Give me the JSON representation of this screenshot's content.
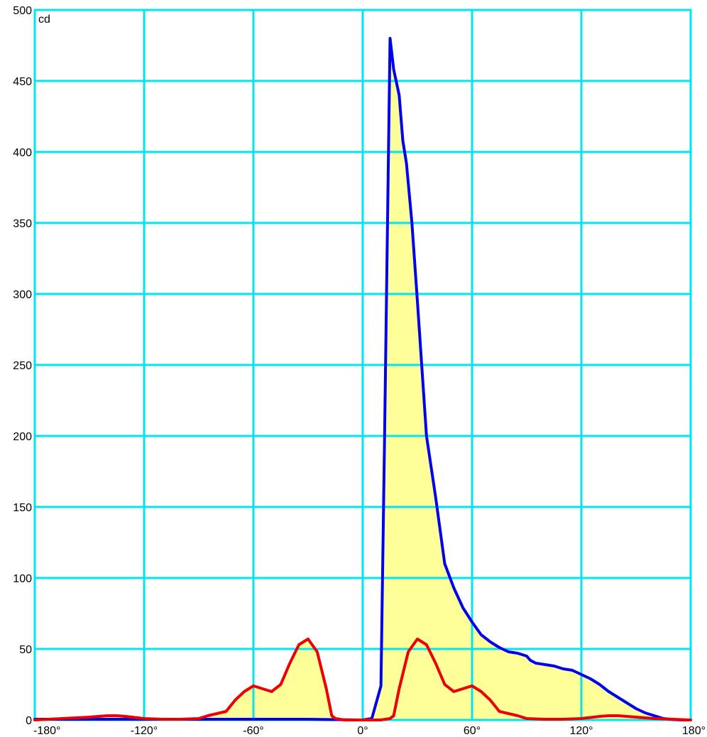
{
  "colors": {
    "background": "#ffffff",
    "grid": "#00e5ee",
    "fill": "#ffff99",
    "series_blue": "#0000ee",
    "series_red": "#ee0000"
  },
  "chart_data": {
    "type": "line",
    "unit_label": "cd",
    "xlim": [
      -180,
      180
    ],
    "ylim": [
      0,
      500
    ],
    "x_ticks": [
      -180,
      -120,
      -60,
      0,
      60,
      120,
      180
    ],
    "x_tick_labels": [
      "-180°",
      "-120°",
      "-60°",
      "0°",
      "60°",
      "120°",
      "180°"
    ],
    "y_ticks": [
      0,
      50,
      100,
      150,
      200,
      250,
      300,
      350,
      400,
      450,
      500
    ],
    "y_tick_labels": [
      "0",
      "50",
      "100",
      "150",
      "200",
      "250",
      "300",
      "350",
      "400",
      "450",
      "500"
    ],
    "grid": true,
    "fill_under_curves": true,
    "series": [
      {
        "color": "#0000ee",
        "x": [
          -180,
          -150,
          -120,
          -90,
          -60,
          -30,
          0,
          5,
          10,
          12,
          15,
          17,
          20,
          22,
          24,
          27,
          30,
          35,
          40,
          45,
          50,
          55,
          60,
          65,
          70,
          75,
          80,
          85,
          90,
          92,
          95,
          100,
          105,
          110,
          115,
          120,
          125,
          130,
          135,
          140,
          145,
          150,
          155,
          160,
          165,
          170,
          175,
          180
        ],
        "y": [
          0.5,
          0.5,
          0.5,
          0.5,
          0.5,
          0.5,
          0,
          1,
          24,
          200,
          480,
          458,
          440,
          408,
          392,
          350,
          295,
          200,
          157,
          110,
          93,
          79,
          69,
          60,
          55,
          51,
          48,
          47,
          45,
          42,
          40,
          39,
          38,
          36,
          35,
          32,
          29,
          25,
          20,
          16,
          12,
          8,
          5,
          3,
          1,
          0.3,
          0,
          0
        ]
      },
      {
        "color": "#ee0000",
        "x": [
          -180,
          -165,
          -150,
          -140,
          -135,
          -130,
          -120,
          -110,
          -100,
          -90,
          -85,
          -80,
          -75,
          -70,
          -65,
          -60,
          -55,
          -50,
          -45,
          -40,
          -35,
          -30,
          -25,
          -20,
          -17,
          -15,
          -10,
          0,
          10,
          15,
          17,
          20,
          25,
          30,
          35,
          40,
          45,
          50,
          55,
          60,
          65,
          70,
          75,
          80,
          85,
          90,
          100,
          110,
          120,
          130,
          135,
          140,
          150,
          160,
          170,
          180
        ],
        "y": [
          0,
          1,
          2,
          3,
          3,
          2.5,
          1,
          0.5,
          0.5,
          1,
          3,
          4.5,
          6,
          14,
          20,
          24,
          22,
          20,
          25,
          40,
          53,
          57,
          48,
          22,
          3,
          1,
          0,
          0,
          0,
          1,
          3,
          22,
          48,
          57,
          53,
          40,
          25,
          20,
          22,
          24,
          20,
          14,
          6,
          4.5,
          3,
          1,
          0.5,
          0.5,
          1,
          2.5,
          3,
          3,
          2,
          1,
          0.5,
          0
        ]
      }
    ]
  }
}
